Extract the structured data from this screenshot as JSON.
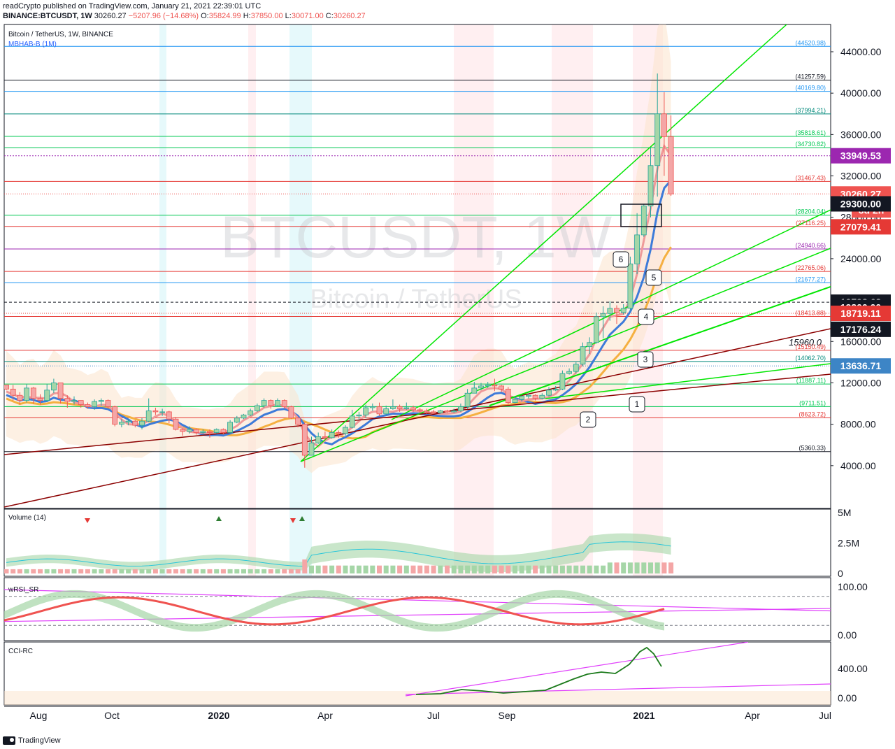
{
  "header": {
    "publish_line": "readCrypto published on TradingView.com, January 21, 2021 22:39:01 UTC",
    "symbol": "BINANCE:BTCUSDT, 1W",
    "close_price": "30260.27",
    "change": "−5207.96 (−14.68%)",
    "open_label": "O:",
    "open": "35824.99",
    "high_label": "H:",
    "high": "37850.00",
    "low_label": "L:",
    "low": "30071.00",
    "close_label": "C:",
    "close": "30260.27"
  },
  "legend": {
    "title": "Bitcoin / TetherUS, 1W, BINANCE",
    "indicator": "MBHAB-B (1M)"
  },
  "watermark": {
    "symbol": "BTCUSDT, 1W",
    "name": "Bitcoin / TetherUS"
  },
  "footer": {
    "brand": "TradingView"
  },
  "colors": {
    "up": "#26a69a",
    "down": "#ef5350",
    "green_line": "#00e600",
    "maroon": "#8b0000",
    "purple": "#9c27b0",
    "blue": "#2196f3"
  },
  "chart_data": [
    {
      "type": "candlestick",
      "name_label": "Bitcoin / TetherUS, 1W, BINANCE",
      "x_ticks": [
        "Aug",
        "Oct",
        "2020",
        "Apr",
        "Jul",
        "Sep",
        "2021",
        "Apr",
        "Jul"
      ],
      "y_ticks": [
        "4000.00",
        "8000.00",
        "12000.00",
        "16000.00",
        "20000.00",
        "24000.00",
        "28000.00",
        "32000.00",
        "36000.00",
        "40000.00",
        "44000.00"
      ],
      "ylim": [
        0,
        46000
      ],
      "candles": [
        [
          11800,
          11400,
          11800,
          11300
        ],
        [
          11400,
          10800,
          11800,
          10300
        ],
        [
          10800,
          10300,
          11100,
          9900
        ],
        [
          10300,
          11500,
          11900,
          10100
        ],
        [
          11500,
          10500,
          11600,
          10000
        ],
        [
          10500,
          10300,
          10900,
          9900
        ],
        [
          10300,
          11300,
          11900,
          10200
        ],
        [
          11300,
          12000,
          12400,
          11000
        ],
        [
          12000,
          10500,
          12000,
          10000
        ],
        [
          10500,
          10200,
          10800,
          9600
        ],
        [
          10200,
          10300,
          10700,
          9900
        ],
        [
          10300,
          9900,
          10300,
          9600
        ],
        [
          9900,
          9700,
          10100,
          9500
        ],
        [
          9700,
          10200,
          10400,
          9400
        ],
        [
          10200,
          10300,
          10500,
          9800
        ],
        [
          10300,
          9700,
          10400,
          9500
        ],
        [
          9700,
          8000,
          9800,
          7800
        ],
        [
          8000,
          8200,
          8500,
          7700
        ],
        [
          8200,
          8300,
          8500,
          7900
        ],
        [
          8300,
          7900,
          8400,
          7700
        ],
        [
          7900,
          8300,
          8600,
          7500
        ],
        [
          8300,
          9300,
          10500,
          8200
        ],
        [
          9300,
          9200,
          9600,
          8900
        ],
        [
          9200,
          9200,
          9500,
          8800
        ],
        [
          9200,
          8500,
          9300,
          8100
        ],
        [
          8500,
          7500,
          8700,
          7400
        ],
        [
          7500,
          7300,
          7600,
          6900
        ],
        [
          7300,
          7500,
          7800,
          7100
        ],
        [
          7500,
          7200,
          7600,
          7000
        ],
        [
          7200,
          7300,
          7500,
          7100
        ],
        [
          7300,
          7200,
          7500,
          6700
        ],
        [
          7200,
          7500,
          7600,
          7100
        ],
        [
          7500,
          7200,
          7600,
          7000
        ],
        [
          7200,
          8200,
          8400,
          7100
        ],
        [
          8200,
          8600,
          8800,
          8100
        ],
        [
          8600,
          8900,
          9000,
          8500
        ],
        [
          8900,
          9300,
          9500,
          8800
        ],
        [
          9300,
          9800,
          10000,
          9200
        ],
        [
          9800,
          10300,
          10500,
          9600
        ],
        [
          10300,
          9800,
          10400,
          9500
        ],
        [
          9800,
          10300,
          10500,
          9700
        ],
        [
          10300,
          9700,
          10400,
          9500
        ],
        [
          9700,
          8600,
          9800,
          8500
        ],
        [
          8600,
          8000,
          8700,
          7700
        ],
        [
          8000,
          5000,
          8200,
          3800
        ],
        [
          5000,
          6200,
          6800,
          5500
        ],
        [
          6200,
          6800,
          7200,
          6100
        ],
        [
          6800,
          6700,
          7300,
          6500
        ],
        [
          6700,
          7200,
          7500,
          6600
        ],
        [
          7200,
          7100,
          7400,
          6700
        ],
        [
          7100,
          7700,
          7900,
          6900
        ],
        [
          7700,
          8800,
          9400,
          7600
        ],
        [
          8800,
          8900,
          9200,
          8400
        ],
        [
          8900,
          9600,
          9900,
          8600
        ],
        [
          9600,
          9700,
          10000,
          9300
        ],
        [
          9700,
          9000,
          10100,
          8800
        ],
        [
          9000,
          9500,
          9800,
          8900
        ],
        [
          9500,
          9700,
          10400,
          9400
        ],
        [
          9700,
          9500,
          9900,
          9200
        ],
        [
          9500,
          9600,
          10100,
          9400
        ],
        [
          9600,
          9400,
          9800,
          9200
        ],
        [
          9400,
          9300,
          9600,
          9100
        ],
        [
          9300,
          9200,
          9500,
          9000
        ],
        [
          9200,
          9100,
          9400,
          9000
        ],
        [
          9100,
          9300,
          9400,
          9000
        ],
        [
          9300,
          9200,
          9400,
          9100
        ],
        [
          9200,
          9300,
          9500,
          9100
        ],
        [
          9300,
          9700,
          10000,
          9200
        ],
        [
          9700,
          11000,
          11400,
          9500
        ],
        [
          11000,
          11500,
          12100,
          11000
        ],
        [
          11500,
          11700,
          12000,
          11300
        ],
        [
          11700,
          11800,
          12100,
          11500
        ],
        [
          11800,
          11700,
          12400,
          11200
        ],
        [
          11700,
          11400,
          11800,
          11100
        ],
        [
          11400,
          10100,
          11600,
          9900
        ],
        [
          10100,
          10400,
          10700,
          10000
        ],
        [
          10400,
          10700,
          10800,
          10200
        ],
        [
          10700,
          10800,
          11000,
          10500
        ],
        [
          10800,
          10500,
          10900,
          10300
        ],
        [
          10500,
          10800,
          11000,
          10400
        ],
        [
          10800,
          11300,
          11600,
          10700
        ],
        [
          11300,
          11400,
          11700,
          11200
        ],
        [
          11400,
          12900,
          13200,
          11300
        ],
        [
          12900,
          13100,
          13400,
          12800
        ],
        [
          13100,
          13800,
          14000,
          12900
        ],
        [
          13800,
          15500,
          15900,
          13600
        ],
        [
          15500,
          15900,
          16400,
          14800
        ],
        [
          15900,
          18400,
          18800,
          15800
        ],
        [
          18400,
          18700,
          19400,
          16300
        ],
        [
          18700,
          19200,
          19900,
          18000
        ],
        [
          19200,
          18800,
          19500,
          17700
        ],
        [
          18800,
          19200,
          19600,
          18600
        ],
        [
          19200,
          23500,
          24200,
          19000
        ],
        [
          23500,
          26300,
          28400,
          22500
        ],
        [
          26300,
          29100,
          29300,
          26100
        ],
        [
          29100,
          33000,
          34800,
          28000
        ],
        [
          33000,
          38000,
          41900,
          30000
        ],
        [
          38000,
          35800,
          40100,
          32000
        ],
        [
          35800,
          30260,
          37850,
          30071
        ]
      ],
      "horizontal_levels": [
        {
          "value": 44520.98,
          "label": "(44520.98)",
          "color": "#2196f3"
        },
        {
          "value": 41257.59,
          "label": "(41257.59)",
          "color": "#131722"
        },
        {
          "value": 40169.8,
          "label": "(40169.80)",
          "color": "#2196f3"
        },
        {
          "value": 37994.21,
          "label": "(37994.21)",
          "color": "#00897b"
        },
        {
          "value": 35818.61,
          "label": "(35818.61)",
          "color": "#00c853"
        },
        {
          "value": 34730.82,
          "label": "(34730.82)",
          "color": "#00c853"
        },
        {
          "value": 31467.43,
          "label": "(31467.43)",
          "color": "#e53935"
        },
        {
          "value": 28204.04,
          "label": "(28204.04)",
          "color": "#00c853"
        },
        {
          "value": 27116.25,
          "label": "(27116.25)",
          "color": "#e53935"
        },
        {
          "value": 24940.66,
          "label": "(24940.66)",
          "color": "#9c27b0"
        },
        {
          "value": 22765.06,
          "label": "(22765.06)",
          "color": "#e53935"
        },
        {
          "value": 21677.27,
          "label": "(21677.27)",
          "color": "#2196f3"
        },
        {
          "value": 18413.88,
          "label": "(18413.88)",
          "color": "#e53935"
        },
        {
          "value": 15150.49,
          "label": "(15150.49)",
          "color": "#e53935"
        },
        {
          "value": 14062.7,
          "label": "(14062.70)",
          "color": "#00897b"
        },
        {
          "value": 11887.11,
          "label": "(11887.11)",
          "color": "#00c853"
        },
        {
          "value": 9711.51,
          "label": "(9711.51)",
          "color": "#00c853"
        },
        {
          "value": 8623.72,
          "label": "(8623.72)",
          "color": "#e53935"
        },
        {
          "value": 5360.33,
          "label": "(5360.33)",
          "color": "#131722"
        }
      ],
      "price_badges": [
        {
          "value": 33949.53,
          "label": "33949.53",
          "color": "#9c27b0"
        },
        {
          "value": 30260.27,
          "label": "30260.27",
          "color": "#ef5350",
          "sub": "3d 2h"
        },
        {
          "value": 29300.0,
          "label": "29300.00",
          "color": "#131722"
        },
        {
          "value": 27079.41,
          "label": "27079.41",
          "color": "#e53935"
        },
        {
          "value": 19798.68,
          "label": "19798.68",
          "color": "#131722"
        },
        {
          "value": 19300.0,
          "label": "19300.00",
          "color": "#131722"
        },
        {
          "value": 18719.11,
          "label": "18719.11",
          "color": "#e53935"
        },
        {
          "value": 17176.24,
          "label": "17176.24",
          "color": "#131722"
        },
        {
          "value": 13636.71,
          "label": "13636.71",
          "color": "#3d85c6"
        }
      ],
      "annotation_text": "15960.0",
      "wave_labels": [
        "1",
        "2",
        "3",
        "4",
        "5",
        "6"
      ]
    },
    {
      "type": "bar",
      "name_label": "Volume (14)",
      "y_ticks": [
        "5M",
        "2.5M",
        "0"
      ],
      "ylim": [
        0,
        5.5
      ]
    },
    {
      "type": "line",
      "name_label": "wRSI_SR",
      "y_ticks": [
        "100.00",
        "0.00"
      ],
      "ylim": [
        -5,
        110
      ]
    },
    {
      "type": "line",
      "name_label": "CCI-RC",
      "y_ticks": [
        "400.00",
        "0.00"
      ],
      "ylim": [
        -50,
        750
      ]
    }
  ]
}
